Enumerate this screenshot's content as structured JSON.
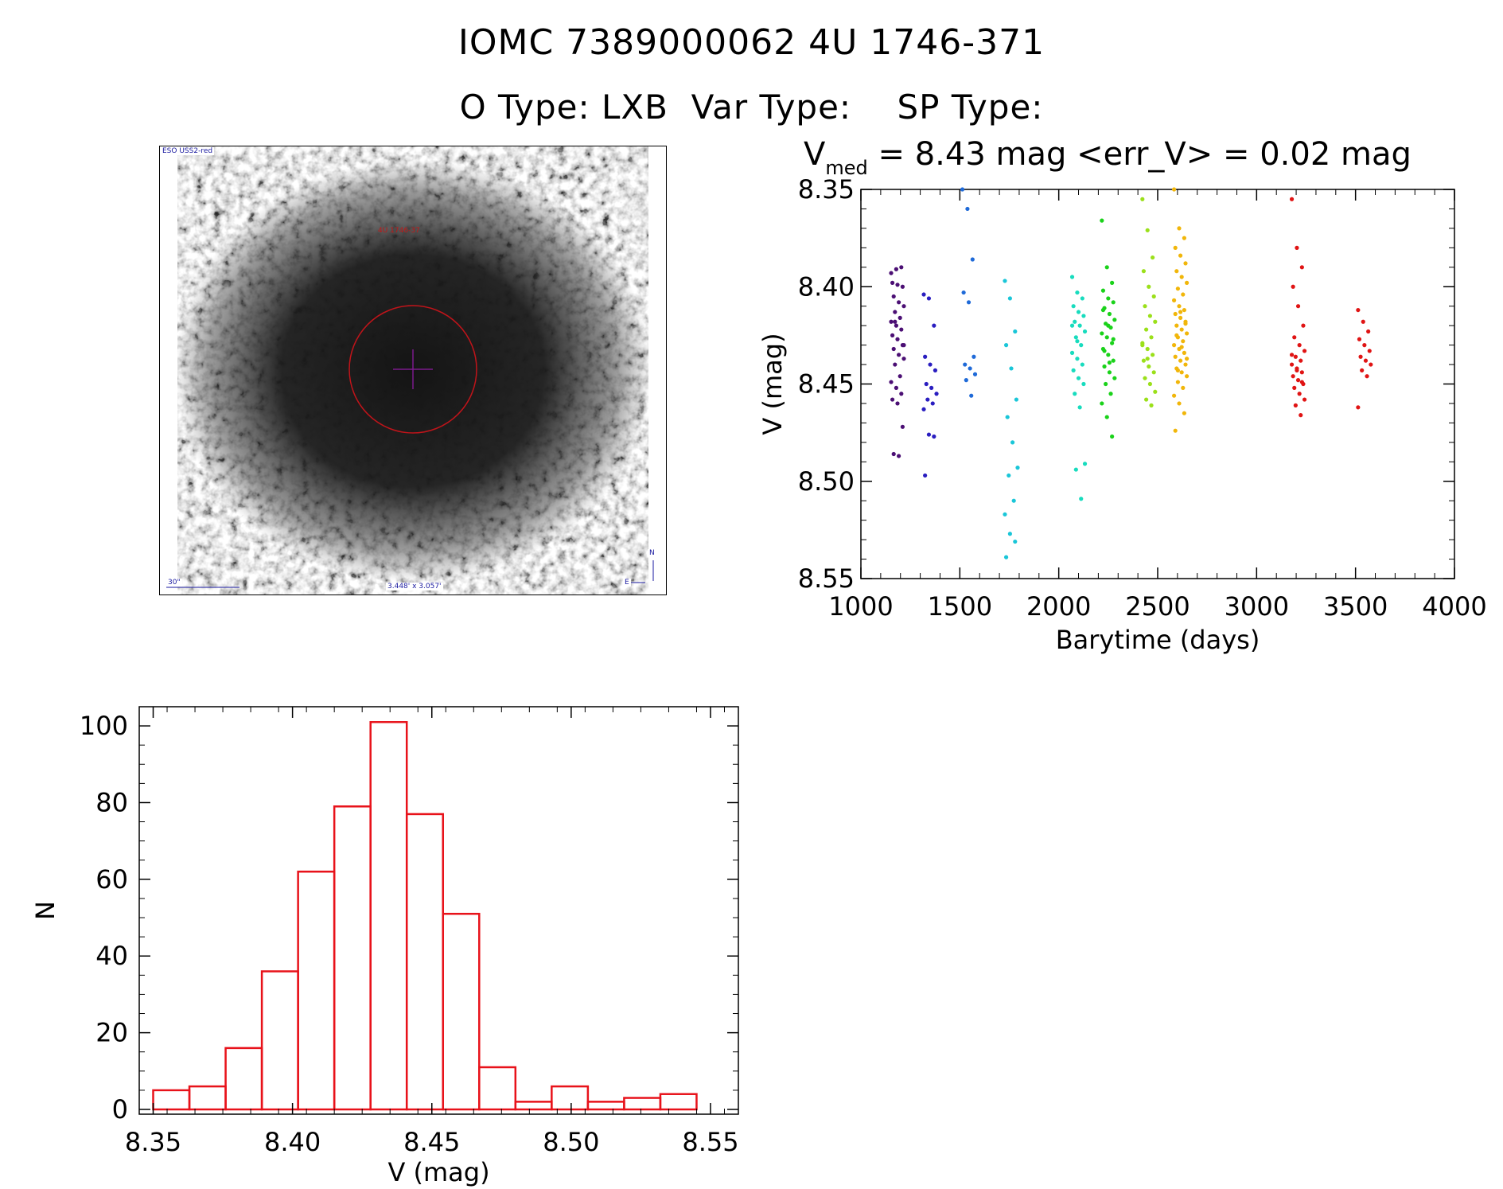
{
  "header": {
    "title": "IOMC 7389000062   4U 1746-371",
    "subtitle": "O Type: LXB  Var Type:    SP Type:"
  },
  "thumbnail": {
    "survey_label": "ESO USS2-red",
    "scale_label": "30\"",
    "size_label": "3.448' x 3.057'",
    "object_label": "4U 1746-37",
    "compass_n": "N",
    "compass_e": "E"
  },
  "colors": {
    "histogram": "#e8121a",
    "marker_circle": "#c0141a",
    "marker_cross": "#7b1a8c",
    "axis": "#000000"
  },
  "chart_data": [
    {
      "type": "scatter",
      "title": "V_med = 8.43 mag <err_V> = 0.02 mag",
      "title_parts": {
        "v": "V",
        "sub": "med",
        "rest": " = 8.43 mag <err_V> = 0.02 mag"
      },
      "xlabel": "Barytime (days)",
      "ylabel": "V (mag)",
      "xlim": [
        1000,
        4000
      ],
      "ylim": [
        8.55,
        8.35
      ],
      "y_inverted": true,
      "xticks": [
        "1000",
        "1500",
        "2000",
        "2500",
        "3000",
        "3500",
        "4000"
      ],
      "yticks": [
        "8.35",
        "8.40",
        "8.45",
        "8.50",
        "8.55"
      ],
      "color_scale": "rainbow by time",
      "groups": [
        {
          "x": 1185,
          "color": "#4b0f74",
          "y": [
            8.393,
            8.391,
            8.39,
            8.398,
            8.399,
            8.4,
            8.405,
            8.408,
            8.41,
            8.413,
            8.416,
            8.418,
            8.42,
            8.422,
            8.425,
            8.427,
            8.43,
            8.432,
            8.435,
            8.437,
            8.44,
            8.446,
            8.449,
            8.452,
            8.455,
            8.458,
            8.46,
            8.472,
            8.486,
            8.487,
            8.43,
            8.418
          ]
        },
        {
          "x": 1350,
          "color": "#2a1ec0",
          "y": [
            8.404,
            8.406,
            8.42,
            8.436,
            8.44,
            8.443,
            8.45,
            8.452,
            8.455,
            8.458,
            8.46,
            8.463,
            8.476,
            8.477,
            8.497
          ]
        },
        {
          "x": 1545,
          "color": "#1f6ad8",
          "y": [
            8.35,
            8.36,
            8.386,
            8.403,
            8.408,
            8.436,
            8.44,
            8.442,
            8.445,
            8.448,
            8.456
          ]
        },
        {
          "x": 1760,
          "color": "#1ac6d8",
          "y": [
            8.397,
            8.406,
            8.423,
            8.43,
            8.442,
            8.458,
            8.467,
            8.48,
            8.493,
            8.497,
            8.51,
            8.517,
            8.527,
            8.531,
            8.539
          ]
        },
        {
          "x": 2100,
          "color": "#18dcbe",
          "y": [
            8.395,
            8.403,
            8.406,
            8.41,
            8.413,
            8.415,
            8.418,
            8.42,
            8.423,
            8.426,
            8.43,
            8.434,
            8.437,
            8.44,
            8.443,
            8.447,
            8.45,
            8.455,
            8.462,
            8.491,
            8.494,
            8.509,
            8.42,
            8.428
          ]
        },
        {
          "x": 2250,
          "color": "#1ad21a",
          "y": [
            8.366,
            8.39,
            8.398,
            8.402,
            8.406,
            8.408,
            8.411,
            8.414,
            8.417,
            8.419,
            8.421,
            8.424,
            8.426,
            8.429,
            8.432,
            8.435,
            8.438,
            8.441,
            8.444,
            8.447,
            8.45,
            8.455,
            8.46,
            8.467,
            8.477,
            8.412,
            8.42,
            8.427,
            8.433,
            8.439
          ]
        },
        {
          "x": 2455,
          "color": "#9be01a",
          "y": [
            8.355,
            8.371,
            8.385,
            8.392,
            8.4,
            8.405,
            8.41,
            8.415,
            8.418,
            8.422,
            8.426,
            8.429,
            8.432,
            8.435,
            8.438,
            8.441,
            8.444,
            8.447,
            8.45,
            8.454,
            8.458,
            8.461,
            8.43,
            8.437
          ]
        },
        {
          "x": 2615,
          "color": "#f1b60a",
          "y": [
            8.35,
            8.37,
            8.375,
            8.38,
            8.384,
            8.388,
            8.392,
            8.395,
            8.398,
            8.401,
            8.404,
            8.407,
            8.41,
            8.412,
            8.414,
            8.416,
            8.418,
            8.42,
            8.422,
            8.424,
            8.426,
            8.428,
            8.43,
            8.432,
            8.434,
            8.436,
            8.438,
            8.44,
            8.442,
            8.444,
            8.446,
            8.449,
            8.452,
            8.456,
            8.46,
            8.465,
            8.474,
            8.413,
            8.419,
            8.425,
            8.431,
            8.437,
            8.443
          ]
        },
        {
          "x": 3210,
          "color": "#e01414",
          "y": [
            8.355,
            8.38,
            8.39,
            8.4,
            8.41,
            8.42,
            8.426,
            8.43,
            8.433,
            8.436,
            8.438,
            8.44,
            8.442,
            8.444,
            8.446,
            8.448,
            8.45,
            8.452,
            8.455,
            8.458,
            8.461,
            8.466,
            8.435,
            8.443,
            8.449
          ]
        },
        {
          "x": 3545,
          "color": "#e01414",
          "y": [
            8.412,
            8.418,
            8.423,
            8.427,
            8.43,
            8.433,
            8.436,
            8.438,
            8.44,
            8.443,
            8.446,
            8.462
          ]
        }
      ]
    },
    {
      "type": "bar",
      "subtype": "histogram",
      "title": "",
      "xlabel": "V (mag)",
      "ylabel": "N",
      "xlim": [
        8.345,
        8.56
      ],
      "ylim": [
        0,
        105
      ],
      "xticks": [
        "8.35",
        "8.40",
        "8.45",
        "8.50",
        "8.55"
      ],
      "yticks": [
        "0",
        "20",
        "40",
        "60",
        "80",
        "100"
      ],
      "bin_width": 0.013,
      "bin_starts": [
        8.35,
        8.363,
        8.376,
        8.389,
        8.402,
        8.415,
        8.428,
        8.441,
        8.454,
        8.467,
        8.48,
        8.493,
        8.506,
        8.519,
        8.532
      ],
      "values": [
        5,
        6,
        16,
        36,
        62,
        79,
        101,
        77,
        51,
        11,
        2,
        6,
        2,
        3,
        4
      ]
    }
  ]
}
